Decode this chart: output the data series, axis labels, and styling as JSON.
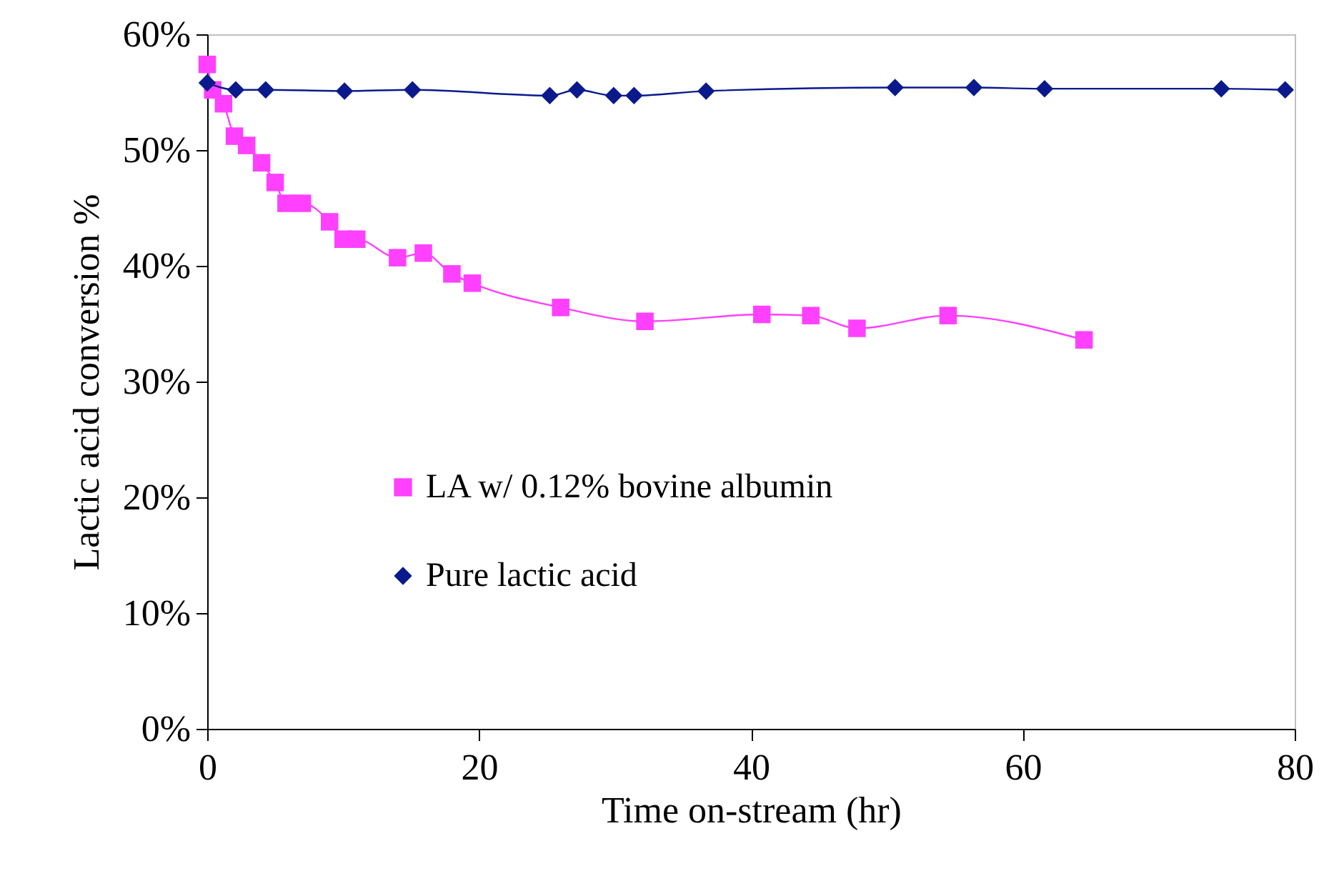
{
  "chart_data": {
    "type": "line",
    "xlabel": "Time on-stream (hr)",
    "ylabel": "Lactic acid conversion %",
    "xlim": [
      0,
      80
    ],
    "xticks": [
      0,
      20,
      40,
      60,
      80
    ],
    "ylim": [
      0,
      60
    ],
    "yticks": [
      {
        "value": 0,
        "label": "0%"
      },
      {
        "value": 10,
        "label": "10%"
      },
      {
        "value": 20,
        "label": "20%"
      },
      {
        "value": 30,
        "label": "30%"
      },
      {
        "value": 40,
        "label": "40%"
      },
      {
        "value": 50,
        "label": "50%"
      },
      {
        "value": 60,
        "label": "60%"
      }
    ],
    "legend": "left",
    "grid": false,
    "series": [
      {
        "name": "LA w/ 0.12% bovine albumin",
        "color": "#ff40ff",
        "marker": "square",
        "x": [
          0,
          0.4,
          1.2,
          2.0,
          2.9,
          4.0,
          5.0,
          5.8,
          7.0,
          9.0,
          10,
          11,
          14,
          15.9,
          18,
          19.5,
          26,
          32.2,
          40.8,
          44.4,
          47.8,
          54.5,
          64.5
        ],
        "values": [
          57.4,
          55.2,
          54.0,
          51.2,
          50.4,
          48.9,
          47.2,
          45.4,
          45.4,
          43.8,
          42.3,
          42.3,
          40.7,
          41.1,
          39.3,
          38.5,
          36.4,
          35.2,
          35.8,
          35.7,
          34.6,
          35.7,
          33.6
        ]
      },
      {
        "name": "Pure lactic acid",
        "color": "#0a1a8c",
        "marker": "diamond",
        "x": [
          0,
          2.1,
          4.3,
          10.1,
          15.1,
          25.2,
          27.2,
          29.9,
          31.4,
          36.7,
          50.6,
          56.4,
          61.6,
          74.6,
          79.3
        ],
        "values": [
          55.8,
          55.2,
          55.2,
          55.1,
          55.2,
          54.7,
          55.2,
          54.7,
          54.7,
          55.1,
          55.4,
          55.4,
          55.3,
          55.3,
          55.2
        ]
      }
    ]
  }
}
